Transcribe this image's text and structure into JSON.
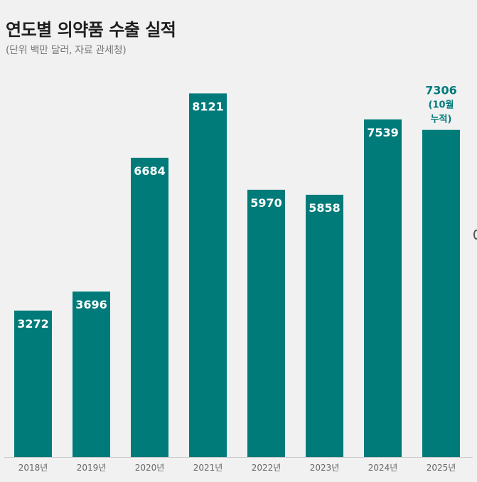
{
  "header": {
    "title": "연도별 의약품 수출 실적",
    "subtitle": "(단위 백만 달러, 자료 관세청)"
  },
  "colors": {
    "bar": "#007b7a",
    "label_inside": "#ffffff",
    "label_outside": "#007b7a",
    "axis_text": "#666666",
    "baseline": "#cccccc"
  },
  "chart_data": {
    "type": "bar",
    "categories": [
      "2018년",
      "2019년",
      "2020년",
      "2021년",
      "2022년",
      "2023년",
      "2024년",
      "2025년"
    ],
    "values": [
      3272,
      3696,
      6684,
      8121,
      5970,
      5858,
      7539,
      7306
    ],
    "data_labels": [
      "3272",
      "3696",
      "6684",
      "8121",
      "5970",
      "5858",
      "7539",
      "7306"
    ],
    "annotations": {
      "7": [
        "(10월",
        "누적)"
      ]
    },
    "title": "연도별 의약품 수출 실적",
    "subtitle": "(단위 백만 달러, 자료 관세청)",
    "grid": false,
    "legend": "none"
  }
}
